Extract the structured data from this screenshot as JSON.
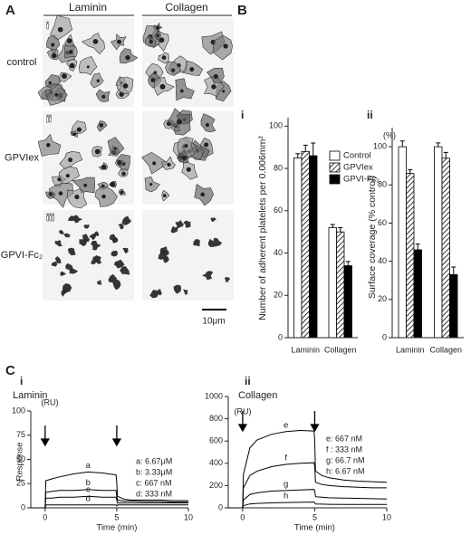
{
  "panels": {
    "a": "A",
    "b": "B",
    "c": "C"
  },
  "micrographs": {
    "columns": [
      "Laminin",
      "Collagen"
    ],
    "rows": [
      {
        "numeral": "i",
        "label": "control"
      },
      {
        "numeral": "ii",
        "label": "GPVIex"
      },
      {
        "numeral": "iii",
        "label": "GPVI-Fc₂"
      }
    ],
    "scale_bar": "10μm"
  },
  "chart_data": [
    {
      "type": "bar",
      "numeral": "i",
      "ylabel": "Number of adherent platelets per 0.006mm²",
      "categories": [
        "Laminin",
        "Collagen"
      ],
      "series": [
        {
          "name": "Control",
          "color": "#ffffff",
          "values": [
            85,
            52
          ],
          "errors": [
            2,
            1.5
          ]
        },
        {
          "name": "GPVIex",
          "color": "#ffffff",
          "pattern": "hatch",
          "values": [
            88,
            50
          ],
          "errors": [
            3,
            2
          ]
        },
        {
          "name": "GPVI-Fc₂",
          "color": "#000000",
          "values": [
            86,
            34
          ],
          "errors": [
            6,
            2
          ]
        }
      ],
      "ylim": [
        0,
        104
      ],
      "yticks": [
        0,
        20,
        40,
        60,
        80,
        100
      ],
      "legend": "top-right"
    },
    {
      "type": "bar",
      "numeral": "ii",
      "ylabel": "Surface coverage (% control)",
      "unit": "(%)",
      "categories": [
        "Laminin",
        "Collagen"
      ],
      "series": [
        {
          "color": "#ffffff",
          "values": [
            100,
            100
          ],
          "errors": [
            3,
            2
          ]
        },
        {
          "color": "#ffffff",
          "pattern": "hatch",
          "values": [
            86,
            94
          ],
          "errors": [
            2,
            3
          ]
        },
        {
          "color": "#000000",
          "values": [
            46,
            33
          ],
          "errors": [
            3,
            4
          ]
        }
      ],
      "ylim": [
        0,
        110
      ],
      "yticks": [
        0,
        20,
        40,
        60,
        80,
        100
      ]
    },
    {
      "type": "line",
      "numeral": "i",
      "title": "Laminin",
      "ylabel": "Response",
      "unit": "(RU)",
      "xlabel": "Time (min)",
      "x": [
        -1,
        0,
        0.05,
        0.5,
        1,
        2,
        3,
        4,
        4.95,
        5,
        5.05,
        5.5,
        6,
        7,
        8,
        9,
        10
      ],
      "series": [
        {
          "name": "a: 6.67μM",
          "label": "a",
          "color": "#000000",
          "values": [
            0,
            0,
            28,
            30,
            32,
            35,
            37,
            36,
            34,
            26,
            12,
            9,
            8,
            8,
            8,
            7.5,
            7.5
          ]
        },
        {
          "name": "b: 3.33μM",
          "label": "b",
          "color": "#000000",
          "values": [
            0,
            0,
            16,
            17,
            18,
            18,
            19,
            18,
            18,
            12,
            8,
            7,
            7,
            6.5,
            6.5,
            6,
            6
          ]
        },
        {
          "name": "c: 667 nM",
          "label": "c",
          "color": "#000000",
          "values": [
            0,
            0,
            10,
            10,
            11,
            11,
            12,
            11,
            11,
            8,
            5,
            5,
            5,
            5,
            5,
            5,
            5
          ]
        },
        {
          "name": "d: 333 nM",
          "label": "d",
          "color": "#000000",
          "values": [
            0,
            0,
            3,
            3,
            3,
            3,
            3,
            3,
            3,
            2,
            3,
            3,
            3,
            3,
            3,
            3,
            3
          ]
        }
      ],
      "arrows": [
        0,
        5
      ],
      "xlim": [
        -1,
        10
      ],
      "xticks": [
        0,
        5,
        10
      ],
      "ylim": [
        0,
        100
      ],
      "yticks": [
        0,
        25,
        50,
        75,
        100
      ]
    },
    {
      "type": "line",
      "numeral": "ii",
      "title": "Collagen",
      "unit": "(RU)",
      "xlabel": "Time (min)",
      "x": [
        -1,
        0,
        0.05,
        0.5,
        1,
        2,
        3,
        4,
        4.95,
        5,
        5.05,
        5.5,
        6,
        7,
        8,
        9,
        10
      ],
      "series": [
        {
          "name": "e: 667 nM",
          "label": "e",
          "color": "#000000",
          "values": [
            0,
            0,
            300,
            540,
            610,
            660,
            685,
            695,
            690,
            600,
            330,
            290,
            270,
            250,
            240,
            235,
            230
          ]
        },
        {
          "name": "f : 333 nM",
          "label": "f",
          "color": "#000000",
          "values": [
            0,
            0,
            180,
            290,
            330,
            370,
            390,
            400,
            405,
            370,
            230,
            210,
            200,
            190,
            185,
            180,
            180
          ]
        },
        {
          "name": "g: 66.7 nM",
          "label": "g",
          "color": "#000000",
          "values": [
            0,
            0,
            70,
            120,
            135,
            150,
            155,
            160,
            165,
            150,
            100,
            95,
            90,
            88,
            85,
            82,
            80
          ]
        },
        {
          "name": "h: 6.67 nM",
          "label": "h",
          "color": "#000000",
          "values": [
            0,
            0,
            20,
            35,
            40,
            45,
            48,
            50,
            52,
            45,
            35,
            33,
            32,
            31,
            30,
            30,
            30
          ]
        }
      ],
      "arrows": [
        0,
        5
      ],
      "xlim": [
        -1,
        10
      ],
      "xticks": [
        0,
        5,
        10
      ],
      "ylim": [
        0,
        1000
      ],
      "yticks": [
        0,
        200,
        400,
        600,
        800,
        1000
      ]
    }
  ]
}
